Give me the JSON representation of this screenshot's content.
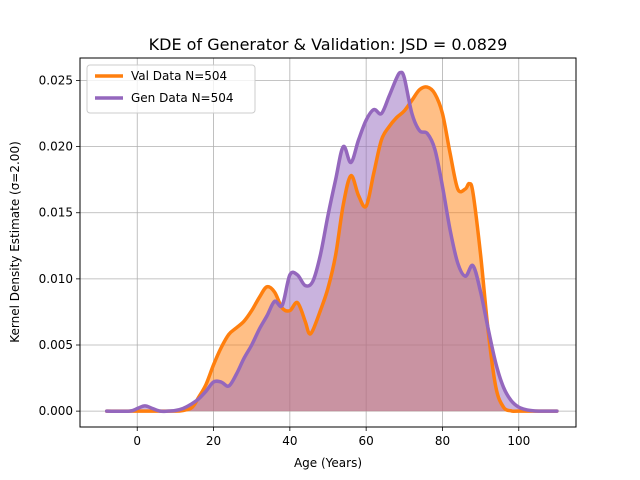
{
  "chart_data": {
    "type": "area",
    "title": "KDE of Generator & Validation: JSD = 0.0829",
    "xlabel": "Age (Years)",
    "ylabel": "Kernel Density Estimate (σ=2.00)",
    "xlim": [
      -15,
      115
    ],
    "ylim": [
      -0.0012,
      0.0267
    ],
    "xticks": [
      0,
      20,
      40,
      60,
      80,
      100
    ],
    "yticks": [
      0.0,
      0.005,
      0.01,
      0.015,
      0.02,
      0.025
    ],
    "xtick_labels": [
      "0",
      "20",
      "40",
      "60",
      "80",
      "100"
    ],
    "ytick_labels": [
      "0.000",
      "0.005",
      "0.010",
      "0.015",
      "0.020",
      "0.025"
    ],
    "grid": true,
    "legend_position": "top-left",
    "series": [
      {
        "name": "Val Data N=504",
        "color": "#ff7f0e",
        "fill_color": "#ffbb84",
        "x": [
          -8,
          0,
          6,
          10,
          12,
          14,
          15,
          16,
          18,
          20,
          22,
          24,
          26,
          28,
          30,
          32,
          34,
          36,
          38,
          40,
          42,
          44,
          45,
          46,
          48,
          50,
          52,
          54,
          56,
          58,
          60,
          62,
          64,
          66,
          68,
          70,
          72,
          74,
          76,
          78,
          80,
          82,
          84,
          86,
          87,
          88,
          90,
          92,
          94,
          96,
          98,
          100,
          110
        ],
        "y": [
          0,
          0,
          0,
          0,
          5e-05,
          0.0002,
          0.0005,
          0.001,
          0.002,
          0.0035,
          0.0048,
          0.0058,
          0.0063,
          0.0068,
          0.0076,
          0.0086,
          0.0094,
          0.009,
          0.0078,
          0.0076,
          0.0082,
          0.0068,
          0.0059,
          0.0061,
          0.0076,
          0.0093,
          0.0118,
          0.0156,
          0.0178,
          0.0163,
          0.0155,
          0.018,
          0.0205,
          0.0215,
          0.0222,
          0.0227,
          0.0235,
          0.0243,
          0.0245,
          0.024,
          0.0225,
          0.0195,
          0.0168,
          0.0168,
          0.0172,
          0.0165,
          0.0118,
          0.006,
          0.0018,
          0.0003,
          2e-05,
          0,
          0
        ]
      },
      {
        "name": "Gen Data N=504",
        "color": "#9467bd",
        "fill_color": "#c8b0de",
        "x": [
          -8,
          -2,
          0,
          2,
          4,
          6,
          8,
          10,
          12,
          14,
          16,
          18,
          20,
          22,
          24,
          26,
          28,
          30,
          32,
          34,
          36,
          38,
          40,
          42,
          44,
          46,
          48,
          50,
          52,
          54,
          56,
          58,
          60,
          62,
          64,
          66,
          68,
          69,
          70,
          72,
          74,
          76,
          78,
          80,
          82,
          84,
          86,
          88,
          90,
          92,
          94,
          96,
          98,
          100,
          102,
          104,
          106,
          110
        ],
        "y": [
          0,
          0,
          0.0002,
          0.0004,
          0.0002,
          0,
          0,
          5e-05,
          0.0002,
          0.0005,
          0.0009,
          0.0015,
          0.0022,
          0.0022,
          0.0019,
          0.0028,
          0.004,
          0.005,
          0.0062,
          0.0072,
          0.0083,
          0.008,
          0.0103,
          0.0103,
          0.0095,
          0.0098,
          0.0118,
          0.0148,
          0.0175,
          0.02,
          0.0188,
          0.0205,
          0.022,
          0.0228,
          0.0225,
          0.0238,
          0.0252,
          0.0256,
          0.0252,
          0.0225,
          0.0212,
          0.021,
          0.0198,
          0.017,
          0.0137,
          0.0112,
          0.0102,
          0.011,
          0.009,
          0.0062,
          0.0036,
          0.0018,
          0.0008,
          0.0003,
          0.0001,
          2e-05,
          0,
          0
        ]
      }
    ]
  }
}
